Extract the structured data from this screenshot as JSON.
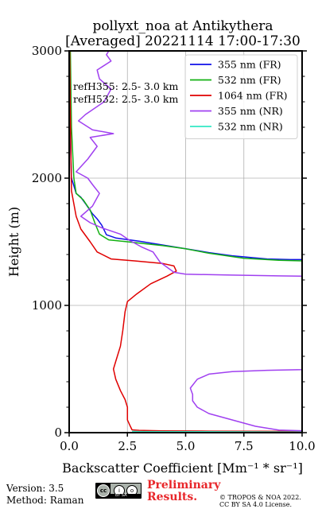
{
  "chart_data": {
    "type": "line",
    "title_lines": [
      "pollyxt_noa at Antikythera",
      "[Averaged] 20221114 17:00-17:30"
    ],
    "xlabel": "Backscatter Coefficient [Mm⁻¹ * sr⁻¹]",
    "ylabel": "Height (m)",
    "xlim": [
      0,
      10
    ],
    "ylim": [
      0,
      3000
    ],
    "xticks": [
      0,
      2.5,
      5,
      7.5,
      10
    ],
    "xtick_labels": [
      "0.0",
      "2.5",
      "5.0",
      "7.5",
      "10.0"
    ],
    "yticks": [
      0,
      1000,
      2000,
      3000
    ],
    "ytick_labels": [
      "0",
      "1000",
      "2000",
      "3000"
    ],
    "grid": true,
    "legend_position": "top-right",
    "annotations": [
      "refH355:  2.5- 3.0 km",
      "refH532:  2.5- 3.0 km"
    ],
    "series": [
      {
        "name": "355 nm (FR)",
        "color": "#1010e8",
        "points": [
          [
            10.0,
            1360
          ],
          [
            9.5,
            1360
          ],
          [
            8.5,
            1365
          ],
          [
            7.0,
            1390
          ],
          [
            6.0,
            1415
          ],
          [
            5.0,
            1445
          ],
          [
            4.0,
            1475
          ],
          [
            3.0,
            1505
          ],
          [
            2.0,
            1530
          ],
          [
            1.6,
            1555
          ],
          [
            1.4,
            1630
          ],
          [
            1.2,
            1680
          ],
          [
            1.0,
            1720
          ],
          [
            0.7,
            1800
          ],
          [
            0.5,
            1850
          ],
          [
            0.3,
            1880
          ],
          [
            0.2,
            1940
          ],
          [
            0.1,
            2000
          ],
          [
            0.05,
            2300
          ],
          [
            0.03,
            3000
          ]
        ]
      },
      {
        "name": "532 nm (FR)",
        "color": "#12b012",
        "points": [
          [
            10.0,
            1350
          ],
          [
            9.0,
            1355
          ],
          [
            7.5,
            1370
          ],
          [
            6.0,
            1410
          ],
          [
            5.0,
            1445
          ],
          [
            4.0,
            1470
          ],
          [
            3.0,
            1490
          ],
          [
            2.5,
            1500
          ],
          [
            1.7,
            1515
          ],
          [
            1.3,
            1560
          ],
          [
            1.1,
            1650
          ],
          [
            0.9,
            1750
          ],
          [
            0.6,
            1830
          ],
          [
            0.3,
            1880
          ],
          [
            0.2,
            2000
          ],
          [
            0.1,
            2400
          ],
          [
            0.05,
            3000
          ]
        ]
      },
      {
        "name": "1064 nm (FR)",
        "color": "#e00000",
        "points": [
          [
            10.0,
            10
          ],
          [
            6.0,
            12
          ],
          [
            4.0,
            14
          ],
          [
            3.0,
            18
          ],
          [
            2.7,
            22
          ],
          [
            2.6,
            60
          ],
          [
            2.5,
            100
          ],
          [
            2.5,
            200
          ],
          [
            2.4,
            260
          ],
          [
            2.2,
            330
          ],
          [
            2.0,
            420
          ],
          [
            1.9,
            500
          ],
          [
            2.0,
            560
          ],
          [
            2.2,
            680
          ],
          [
            2.3,
            800
          ],
          [
            2.4,
            950
          ],
          [
            2.5,
            1030
          ],
          [
            2.9,
            1090
          ],
          [
            3.5,
            1170
          ],
          [
            4.2,
            1230
          ],
          [
            4.6,
            1270
          ],
          [
            4.5,
            1310
          ],
          [
            4.0,
            1330
          ],
          [
            2.8,
            1350
          ],
          [
            1.8,
            1365
          ],
          [
            1.2,
            1420
          ],
          [
            0.9,
            1500
          ],
          [
            0.5,
            1600
          ],
          [
            0.3,
            1700
          ],
          [
            0.1,
            1900
          ],
          [
            0.05,
            2500
          ],
          [
            0.02,
            3000
          ]
        ]
      },
      {
        "name": "355 nm (NR)",
        "color": "#a040f0",
        "points": [
          [
            10.0,
            15
          ],
          [
            9.0,
            20
          ],
          [
            8.0,
            50
          ],
          [
            7.0,
            100
          ],
          [
            6.0,
            150
          ],
          [
            5.5,
            200
          ],
          [
            5.3,
            250
          ],
          [
            5.3,
            300
          ],
          [
            5.2,
            350
          ],
          [
            5.5,
            420
          ],
          [
            6.0,
            460
          ],
          [
            7.0,
            480
          ],
          [
            8.5,
            490
          ],
          [
            10.0,
            495
          ],
          [
            10.0,
            1230
          ],
          [
            9.0,
            1232
          ],
          [
            7.0,
            1238
          ],
          [
            5.0,
            1245
          ],
          [
            4.5,
            1260
          ],
          [
            4.2,
            1300
          ],
          [
            3.9,
            1340
          ],
          [
            3.6,
            1420
          ],
          [
            3.1,
            1460
          ],
          [
            2.6,
            1510
          ],
          [
            2.2,
            1560
          ],
          [
            1.4,
            1610
          ],
          [
            0.9,
            1650
          ],
          [
            0.5,
            1700
          ],
          [
            1.0,
            1780
          ],
          [
            1.3,
            1880
          ],
          [
            1.0,
            1950
          ],
          [
            0.8,
            2000
          ],
          [
            0.3,
            2050
          ],
          [
            0.8,
            2150
          ],
          [
            1.2,
            2250
          ],
          [
            0.9,
            2320
          ],
          [
            1.9,
            2350
          ],
          [
            1.0,
            2380
          ],
          [
            0.4,
            2450
          ],
          [
            0.7,
            2500
          ],
          [
            1.5,
            2600
          ],
          [
            1.8,
            2700
          ],
          [
            1.3,
            2780
          ],
          [
            1.2,
            2850
          ],
          [
            1.8,
            2920
          ],
          [
            1.6,
            2970
          ],
          [
            1.7,
            3000
          ]
        ]
      },
      {
        "name": "532 nm (NR)",
        "color": "#33e8c4",
        "points": [
          [
            10.0,
            5
          ],
          [
            8.0,
            6
          ],
          [
            5.0,
            8
          ],
          [
            3.0,
            9
          ],
          [
            2.7,
            10
          ]
        ]
      }
    ]
  },
  "footer": {
    "version": "Version: 3.5",
    "method": "Method: Raman",
    "preliminary_line1": "Preliminary",
    "preliminary_line2": "Results.",
    "copyright_line1": "© TROPOS & NOA 2022.",
    "copyright_line2": "CC BY SA 4.0 License.",
    "license_badge": [
      "cc",
      "i",
      "o",
      "BY SA"
    ]
  }
}
